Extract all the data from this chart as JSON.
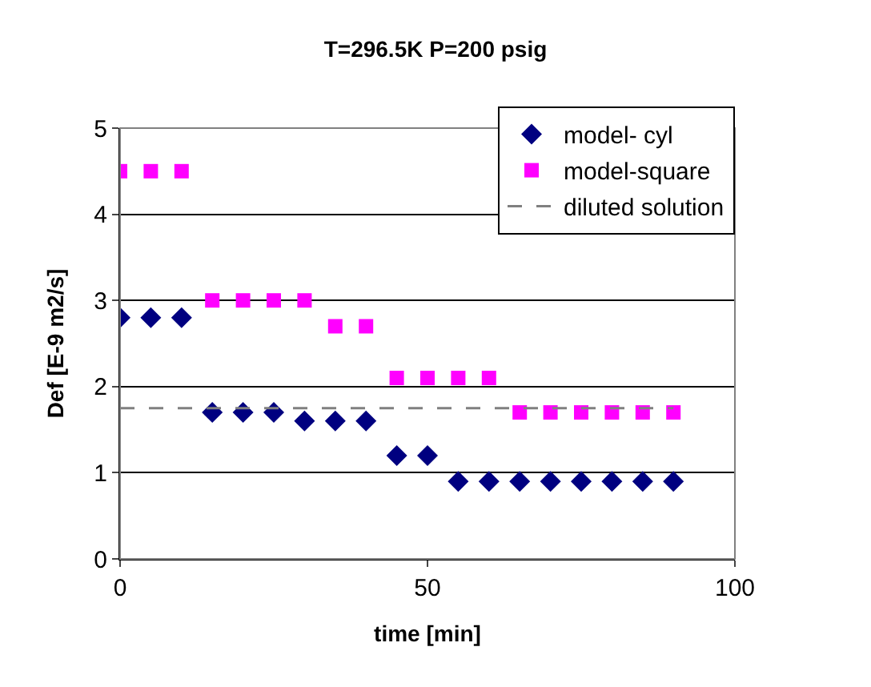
{
  "chart_data": {
    "type": "scatter",
    "title": "T=296.5K P=200 psig",
    "xlabel": "time [min]",
    "ylabel": "Def [E-9 m2/s]",
    "x": [
      0,
      5,
      10,
      15,
      20,
      25,
      30,
      35,
      40,
      45,
      50,
      55,
      60,
      65,
      70,
      75,
      80,
      85,
      90
    ],
    "series": [
      {
        "name": "model- cyl",
        "color": "#000080",
        "marker": "diamond",
        "values": [
          2.8,
          2.8,
          2.8,
          1.7,
          1.7,
          1.7,
          1.6,
          1.6,
          1.6,
          1.2,
          1.2,
          0.9,
          0.9,
          0.9,
          0.9,
          0.9,
          0.9,
          0.9,
          0.9
        ]
      },
      {
        "name": "model-square",
        "color": "#ff00ff",
        "marker": "square",
        "values": [
          4.5,
          4.5,
          4.5,
          3.0,
          3.0,
          3.0,
          3.0,
          2.7,
          2.7,
          2.1,
          2.1,
          2.1,
          2.1,
          1.7,
          1.7,
          1.7,
          1.7,
          1.7,
          1.7
        ]
      },
      {
        "name": "diluted solution",
        "type": "line",
        "color": "#808080",
        "line_style": "dashed",
        "marker": "none",
        "x": [
          0,
          90
        ],
        "values": [
          1.75,
          1.75
        ]
      }
    ],
    "xlim": [
      0,
      100
    ],
    "xticks": [
      0,
      50,
      100
    ],
    "ylim": [
      0,
      5
    ],
    "yticks": [
      0,
      1,
      2,
      3,
      4,
      5
    ],
    "grid": "y",
    "legend": "top right"
  }
}
